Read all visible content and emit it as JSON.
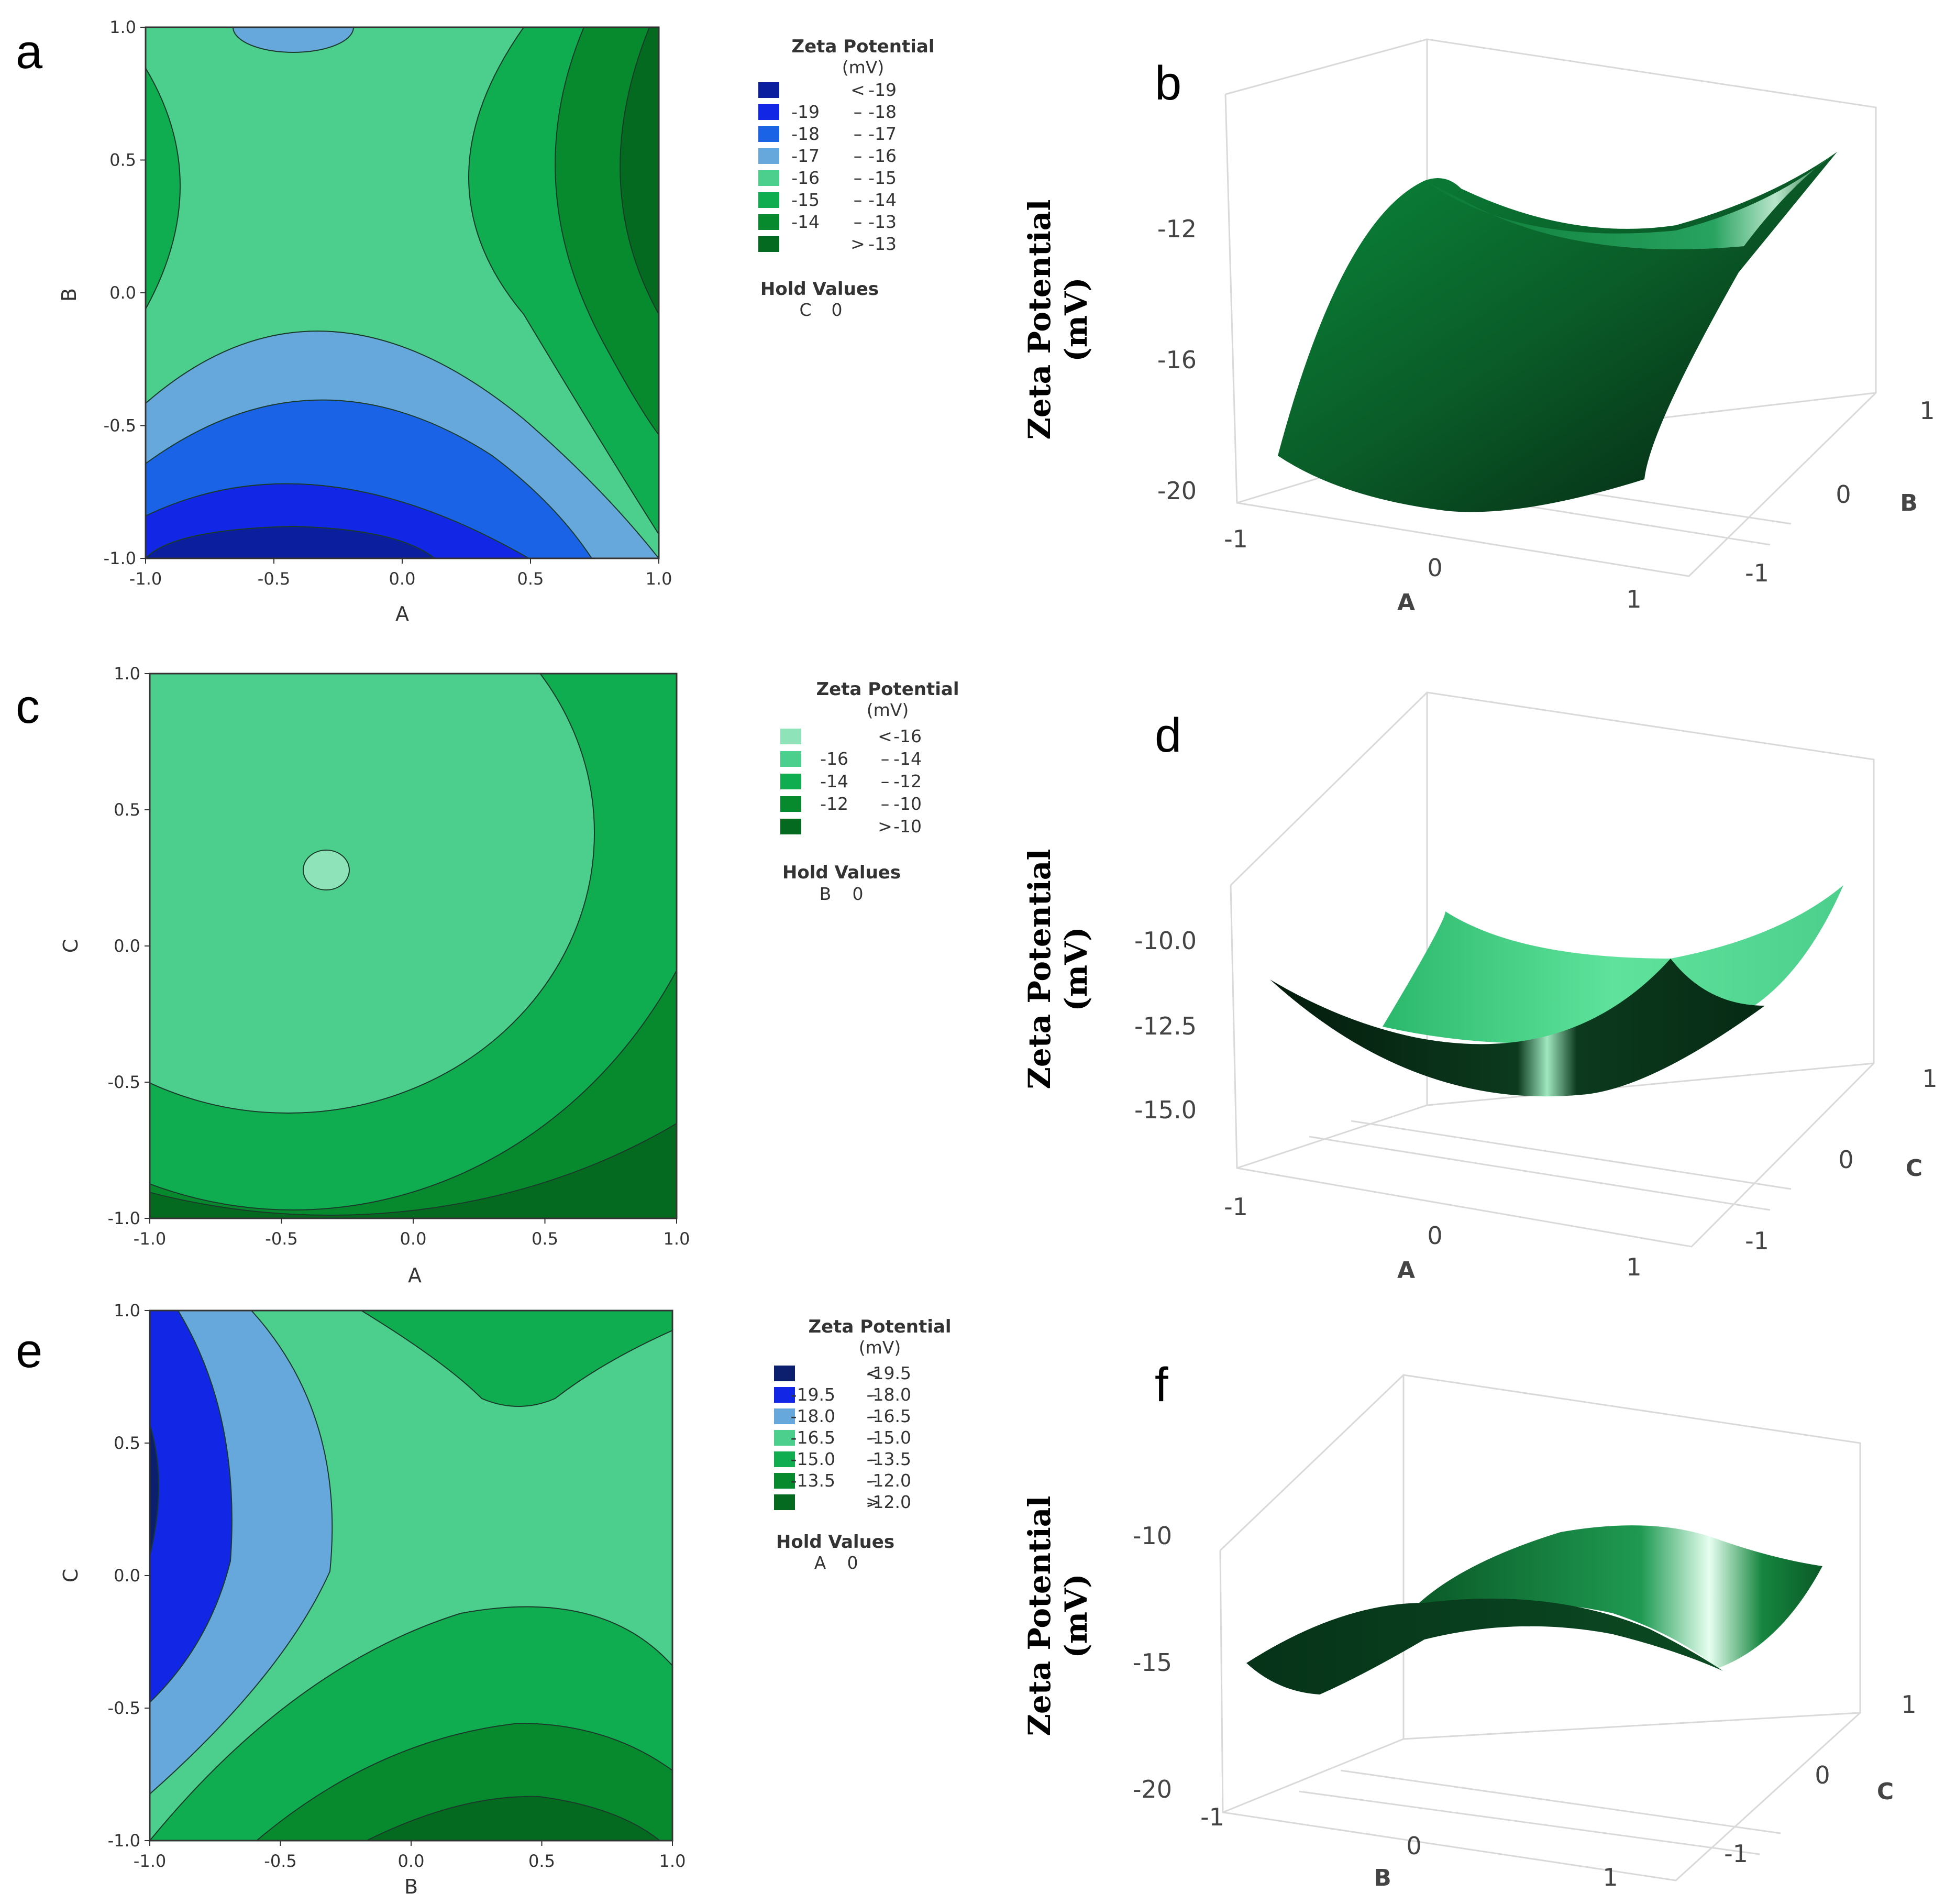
{
  "chart_data": [
    {
      "panel": "a",
      "type": "contour",
      "xlabel": "A",
      "ylabel": "B",
      "xlim": [
        -1.0,
        1.0
      ],
      "ylim": [
        -1.0,
        1.0
      ],
      "xticks": [
        "-1.0",
        "-0.5",
        "0.0",
        "0.5",
        "1.0"
      ],
      "yticks": [
        "-1.0",
        "-0.5",
        "0.0",
        "0.5",
        "1.0"
      ],
      "legend": {
        "title": "Zeta Potential",
        "units": "(mV)",
        "levels": [
          {
            "lo": "<",
            "hi": "-19",
            "color": "#0b1f9e"
          },
          {
            "lo": "-19",
            "hi": "-18",
            "color": "#1226e6"
          },
          {
            "lo": "-18",
            "hi": "-17",
            "color": "#1a63e6"
          },
          {
            "lo": "-17",
            "hi": "-16",
            "color": "#66a8dc"
          },
          {
            "lo": "-16",
            "hi": "-15",
            "color": "#4ccf8c"
          },
          {
            "lo": "-15",
            "hi": "-14",
            "color": "#0fad4f"
          },
          {
            "lo": "-14",
            "hi": "-13",
            "color": "#078a2e"
          },
          {
            "lo": ">",
            "hi": "-13",
            "color": "#046a1f"
          }
        ],
        "hold_title": "Hold Values",
        "hold_var": "C",
        "hold_val": "0"
      }
    },
    {
      "panel": "b",
      "type": "surface3d",
      "zlabel_line1": "Zeta Potential",
      "zlabel_line2": "(mV)",
      "zticks": [
        "-12",
        "-16",
        "-20"
      ],
      "x_label": "A",
      "y_label": "B",
      "x_ticks": [
        "-1",
        "0",
        "1"
      ],
      "y_ticks": [
        "-1",
        "0",
        "1"
      ]
    },
    {
      "panel": "c",
      "type": "contour",
      "xlabel": "A",
      "ylabel": "C",
      "xlim": [
        -1.0,
        1.0
      ],
      "ylim": [
        -1.0,
        1.0
      ],
      "xticks": [
        "-1.0",
        "-0.5",
        "0.0",
        "0.5",
        "1.0"
      ],
      "yticks": [
        "-1.0",
        "-0.5",
        "0.0",
        "0.5",
        "1.0"
      ],
      "legend": {
        "title": "Zeta Potential",
        "units": "(mV)",
        "levels": [
          {
            "lo": "<",
            "hi": "-16",
            "color": "#8fe3b8"
          },
          {
            "lo": "-16",
            "hi": "-14",
            "color": "#4ccf8c"
          },
          {
            "lo": "-14",
            "hi": "-12",
            "color": "#0fad4f"
          },
          {
            "lo": "-12",
            "hi": "-10",
            "color": "#078a2e"
          },
          {
            "lo": ">",
            "hi": "-10",
            "color": "#046a1f"
          }
        ],
        "hold_title": "Hold Values",
        "hold_var": "B",
        "hold_val": "0"
      }
    },
    {
      "panel": "d",
      "type": "surface3d",
      "zlabel_line1": "Zeta Potential",
      "zlabel_line2": "(mV)",
      "zticks": [
        "-10.0",
        "-12.5",
        "-15.0"
      ],
      "x_label": "A",
      "y_label": "C",
      "x_ticks": [
        "-1",
        "0",
        "1"
      ],
      "y_ticks": [
        "-1",
        "0",
        "1"
      ]
    },
    {
      "panel": "e",
      "type": "contour",
      "xlabel": "B",
      "ylabel": "C",
      "xlim": [
        -1.0,
        1.0
      ],
      "ylim": [
        -1.0,
        1.0
      ],
      "xticks": [
        "-1.0",
        "-0.5",
        "0.0",
        "0.5",
        "1.0"
      ],
      "yticks": [
        "-1.0",
        "-0.5",
        "0.0",
        "0.5",
        "1.0"
      ],
      "legend": {
        "title": "Zeta Potential",
        "units": "(mV)",
        "levels": [
          {
            "lo": "<",
            "hi": "-19.5",
            "color": "#0b1f6e"
          },
          {
            "lo": "-19.5",
            "hi": "-18.0",
            "color": "#1226e6"
          },
          {
            "lo": "-18.0",
            "hi": "-16.5",
            "color": "#66a8dc"
          },
          {
            "lo": "-16.5",
            "hi": "-15.0",
            "color": "#4ccf8c"
          },
          {
            "lo": "-15.0",
            "hi": "-13.5",
            "color": "#0fad4f"
          },
          {
            "lo": "-13.5",
            "hi": "-12.0",
            "color": "#078a2e"
          },
          {
            "lo": ">",
            "hi": "-12.0",
            "color": "#046a1f"
          }
        ],
        "hold_title": "Hold Values",
        "hold_var": "A",
        "hold_val": "0"
      }
    },
    {
      "panel": "f",
      "type": "surface3d",
      "zlabel_line1": "Zeta Potential",
      "zlabel_line2": "(mV)",
      "zticks": [
        "-10",
        "-15",
        "-20"
      ],
      "x_label": "B",
      "y_label": "C",
      "x_ticks": [
        "-1",
        "0",
        "1"
      ],
      "y_ticks": [
        "-1",
        "0",
        "1"
      ]
    }
  ],
  "dash": "–"
}
